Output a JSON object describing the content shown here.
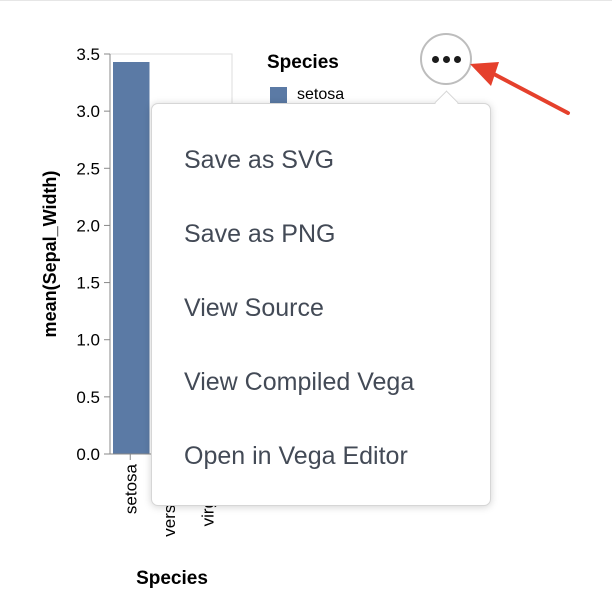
{
  "chart_data": {
    "type": "bar",
    "categories": [
      "setosa",
      "versicolor",
      "virginica"
    ],
    "values": [
      3.43,
      null,
      null
    ],
    "xlabel": "Species",
    "ylabel": "mean(Sepal_Width)",
    "ylim": [
      0,
      3.5
    ],
    "yticks": [
      "0.0",
      "0.5",
      "1.0",
      "1.5",
      "2.0",
      "2.5",
      "3.0",
      "3.5"
    ],
    "ytick_values": [
      0,
      0.5,
      1,
      1.5,
      2,
      2.5,
      3,
      3.5
    ],
    "grid": false,
    "legend": {
      "title": "Species",
      "placement": "top-right",
      "items": [
        {
          "label": "setosa",
          "color": "#5b7aa5"
        }
      ]
    },
    "colors": {
      "bar": "#5b7aa5",
      "axis": "#888888"
    }
  },
  "actions_menu": {
    "button_icon": "more-horizontal-icon",
    "items": [
      {
        "label": "Save as SVG"
      },
      {
        "label": "Save as PNG"
      },
      {
        "label": "View Source"
      },
      {
        "label": "View Compiled Vega"
      },
      {
        "label": "Open in Vega Editor"
      }
    ]
  },
  "annotation": {
    "arrow_color": "#e5402c",
    "arrow_icon": "red-arrow-icon"
  }
}
